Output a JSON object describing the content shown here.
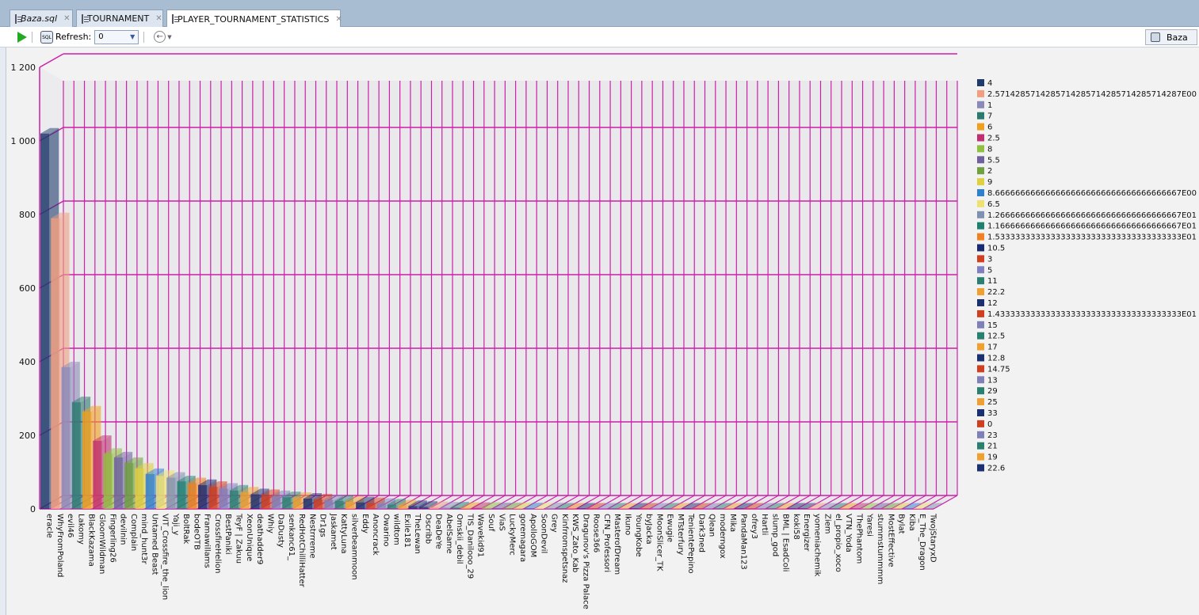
{
  "tabs": [
    {
      "label": "Baza.sql",
      "active": false
    },
    {
      "label": "TOURNAMENT",
      "active": false
    },
    {
      "label": "PLAYER_TOURNAMENT_STATISTICS",
      "active": true
    }
  ],
  "toolbar": {
    "refresh_label": "Refresh:",
    "refresh_value": "0",
    "connection": "Baza"
  },
  "colors": {
    "grid": "#cc1fa8",
    "floor": "#e8e8ea",
    "background": "#f2f2f2"
  },
  "chart_data": {
    "type": "bar",
    "title": "",
    "ylim": [
      0,
      1200
    ],
    "yticks": [
      0,
      200,
      400,
      600,
      800,
      1000,
      1200
    ],
    "ytick_labels": [
      "0",
      "200",
      "400",
      "600",
      "800",
      "1 000",
      "1 200"
    ],
    "grid": true,
    "legend_position": "right",
    "categories": [
      "eracle",
      "WhyFromPoland",
      "evil46",
      "Lakomy",
      "BlackKazama",
      "GloomWildman",
      "Fingerling26",
      "devilnin",
      "Complain",
      "mind_hunt3r",
      "Untamed Beast",
      "VIT_Crossfire_the_lion",
      "Yaji_y",
      "BoltRak",
      "bodeOTB",
      "Framawillams",
      "CrossfireHelion",
      "BestPaniki",
      "TeyF | Zakuu",
      "XeonUnique",
      "deathadder9",
      "Whiy",
      "DaDusty",
      "senkanc61_",
      "RedHotChilliHatter",
      "Nestrrreme",
      "Dr1gs",
      "Jaskamet",
      "KattyLuna",
      "silverbeammoon",
      "Eddy",
      "Anoncrack",
      "Owarino",
      "wildtom",
      "Exile181",
      "TheLewan",
      "Oscribb",
      "DeaDeYe",
      "AbelSame",
      "Omskii_debil",
      "TIS_Danilooo_29",
      "Wavekid91",
      "Souf",
      "ViaS",
      "LuckyMerc",
      "goremagara",
      "ApolloGOM",
      "SoonDevil",
      "Grey",
      "Kinfrromspetsnaz",
      "KWS_Zato_Kab",
      "Dragunov's Pizza Palace",
      "Roose366",
      "CFN_Professori",
      "MasterofDream",
      "Ikuno",
      "YoungKobe",
      "byJacka",
      "MoonSlicer_TK",
      "Ewugie",
      "MTsterfury",
      "TenientePepino",
      "Dark3ned",
      "Qlean",
      "moderngox",
      "Mika",
      "PandaMan123",
      "ofrey3",
      "Hartli",
      "slump_god",
      "BML | EsadColi",
      "koki58",
      "Energizer",
      "yomeniachemik",
      "Ziem",
      "el_propio_xoco",
      "VTN_Yoda",
      "ThePhantom",
      "Yaresi",
      "stummstummmm",
      "MostEffective",
      "Bylat",
      "Kiba",
      "E_The_Dragon",
      "TwojStaryxD"
    ],
    "values": [
      1020,
      790,
      385,
      290,
      265,
      185,
      150,
      140,
      125,
      110,
      95,
      90,
      85,
      75,
      70,
      65,
      60,
      55,
      50,
      45,
      40,
      38,
      35,
      32,
      30,
      28,
      26,
      24,
      22,
      20,
      18,
      16,
      14,
      12,
      10,
      8,
      6,
      5,
      4,
      4,
      3,
      3,
      3,
      2,
      2,
      2,
      2,
      2,
      2,
      1,
      1,
      1,
      1,
      1,
      1,
      1,
      1,
      1,
      1,
      1,
      1,
      1,
      1,
      1,
      1,
      1,
      1,
      1,
      1,
      1,
      1,
      1,
      1,
      1,
      1,
      1,
      1,
      1,
      1,
      1,
      1,
      1,
      1,
      1,
      1
    ],
    "legend": [
      {
        "label": "4",
        "color": "#1f3a6b"
      },
      {
        "label": "2.5714285714285714285714285714285714287E00",
        "color": "#f0a080"
      },
      {
        "label": "1",
        "color": "#8a8ab8"
      },
      {
        "label": "7",
        "color": "#2a7a70"
      },
      {
        "label": "6",
        "color": "#f0a020"
      },
      {
        "label": "2.5",
        "color": "#c03070"
      },
      {
        "label": "8",
        "color": "#90c040"
      },
      {
        "label": "5.5",
        "color": "#7060a0"
      },
      {
        "label": "2",
        "color": "#70a040"
      },
      {
        "label": "9",
        "color": "#e0d040"
      },
      {
        "label": "8.6666666666666666666666666666666666667E00",
        "color": "#3080d0"
      },
      {
        "label": "6.5",
        "color": "#f0e070"
      },
      {
        "label": "1.2666666666666666666666666666666666667E01",
        "color": "#8090b0"
      },
      {
        "label": "1.1666666666666666666666666666666666667E01",
        "color": "#208070"
      },
      {
        "label": "1.5333333333333333333333333333333333333E01",
        "color": "#f08020"
      },
      {
        "label": "10.5",
        "color": "#1a2a70"
      },
      {
        "label": "3",
        "color": "#d04020"
      },
      {
        "label": "5",
        "color": "#8080c0"
      },
      {
        "label": "11",
        "color": "#2a8070"
      },
      {
        "label": "22.2",
        "color": "#f0a030"
      },
      {
        "label": "12",
        "color": "#1a3070"
      },
      {
        "label": "1.4333333333333333333333333333333333333E01",
        "color": "#d04020"
      },
      {
        "label": "15",
        "color": "#8080b8"
      },
      {
        "label": "12.5",
        "color": "#2a8070"
      },
      {
        "label": "17",
        "color": "#f0a030"
      },
      {
        "label": "12.8",
        "color": "#1a3070"
      },
      {
        "label": "14.75",
        "color": "#d04020"
      },
      {
        "label": "13",
        "color": "#8080b8"
      },
      {
        "label": "29",
        "color": "#2a8070"
      },
      {
        "label": "25",
        "color": "#f0a030"
      },
      {
        "label": "33",
        "color": "#1a3070"
      },
      {
        "label": "0",
        "color": "#d04020"
      },
      {
        "label": "23",
        "color": "#8080b8"
      },
      {
        "label": "21",
        "color": "#2a8070"
      },
      {
        "label": "19",
        "color": "#f0a030"
      },
      {
        "label": "22.6",
        "color": "#1a3070"
      }
    ]
  }
}
